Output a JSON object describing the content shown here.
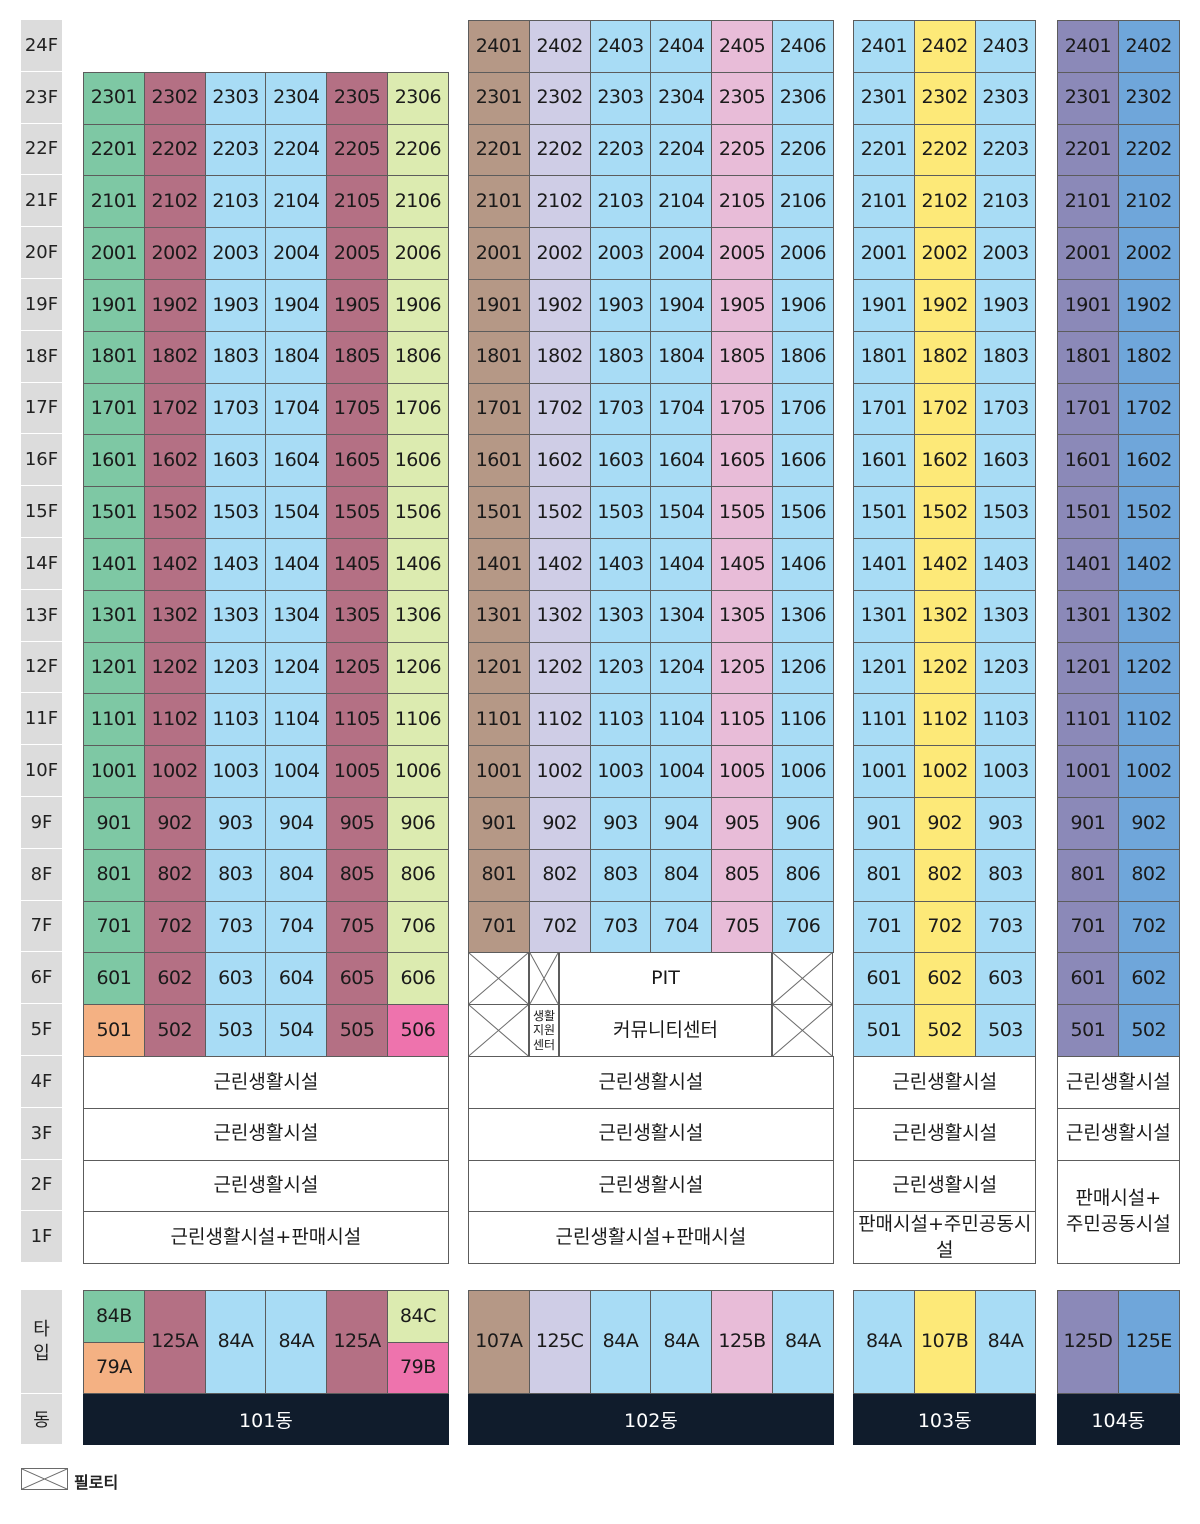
{
  "colors": {
    "79A": "#f4b183",
    "84A": "#a8dcf5",
    "84B": "#7ec8a4",
    "84C": "#dcebb0",
    "79B": "#ee73ad",
    "125A": "#b47084",
    "125B": "#e8bcd8",
    "125C": "#cfcde6",
    "125D": "#8b89b8",
    "125E": "#6fa6da",
    "107A": "#b59886",
    "107B": "#fde978"
  },
  "floor_labels": [
    "24F",
    "23F",
    "22F",
    "21F",
    "20F",
    "19F",
    "18F",
    "17F",
    "16F",
    "15F",
    "14F",
    "13F",
    "12F",
    "11F",
    "10F",
    "9F",
    "8F",
    "7F",
    "6F",
    "5F",
    "4F",
    "3F",
    "2F",
    "1F"
  ],
  "type_label": [
    "타",
    "입"
  ],
  "dong_label": "동",
  "buildings": [
    {
      "name": "101동",
      "top_floor": 23,
      "lowest_unit_floor": 5,
      "columns": [
        {
          "type": "84B",
          "floor_types": {
            "5": "79A"
          }
        },
        {
          "type": "125A"
        },
        {
          "type": "84A"
        },
        {
          "type": "84A"
        },
        {
          "type": "125A"
        },
        {
          "type": "84C",
          "floor_types": {
            "5": "79B"
          }
        }
      ],
      "type_row": [
        {
          "stack": [
            "84B",
            "79A"
          ]
        },
        {
          "label": "125A"
        },
        {
          "label": "84A"
        },
        {
          "label": "84A"
        },
        {
          "label": "125A"
        },
        {
          "stack": [
            "84C",
            "79B"
          ]
        }
      ],
      "podium": [
        {
          "floor": 4,
          "text": "근린생활시설"
        },
        {
          "floor": 3,
          "text": "근린생활시설"
        },
        {
          "floor": 2,
          "text": "근린생활시설"
        },
        {
          "floor": 1,
          "text": "근린생활시설+판매시설"
        }
      ]
    },
    {
      "name": "102동",
      "top_floor": 24,
      "lowest_unit_floor": 7,
      "columns": [
        {
          "type": "107A"
        },
        {
          "type": "125C"
        },
        {
          "type": "84A"
        },
        {
          "type": "84A"
        },
        {
          "type": "125B"
        },
        {
          "type": "84A"
        }
      ],
      "type_row": [
        {
          "label": "107A"
        },
        {
          "label": "125C"
        },
        {
          "label": "84A"
        },
        {
          "label": "84A"
        },
        {
          "label": "125B"
        },
        {
          "label": "84A"
        }
      ],
      "special_6f": "PIT",
      "special_5f": "커뮤니티센터",
      "special_5f_small": [
        "생활",
        "지원",
        "센터"
      ],
      "podium": [
        {
          "floor": 4,
          "text": "근린생활시설"
        },
        {
          "floor": 3,
          "text": "근린생활시설"
        },
        {
          "floor": 2,
          "text": "근린생활시설"
        },
        {
          "floor": 1,
          "text": "근린생활시설+판매시설"
        }
      ]
    },
    {
      "name": "103동",
      "top_floor": 24,
      "lowest_unit_floor": 5,
      "columns": [
        {
          "type": "84A"
        },
        {
          "type": "107B"
        },
        {
          "type": "84A"
        }
      ],
      "type_row": [
        {
          "label": "84A"
        },
        {
          "label": "107B"
        },
        {
          "label": "84A"
        }
      ],
      "podium": [
        {
          "floor": 4,
          "text": "근린생활시설"
        },
        {
          "floor": 3,
          "text": "근린생활시설"
        },
        {
          "floor": 2,
          "text": "근린생활시설"
        },
        {
          "floor": 1,
          "text": "판매시설+주민공동시설"
        }
      ]
    },
    {
      "name": "104동",
      "top_floor": 24,
      "lowest_unit_floor": 5,
      "columns": [
        {
          "type": "125D"
        },
        {
          "type": "125E"
        }
      ],
      "type_row": [
        {
          "label": "125D"
        },
        {
          "label": "125E"
        }
      ],
      "podium": [
        {
          "floor": 4,
          "text": "근린생활시설"
        },
        {
          "floor": 3,
          "text": "근린생활시설"
        },
        {
          "floor": "1-2",
          "text": "판매시설+\n주민공동시설"
        }
      ]
    }
  ],
  "legend": {
    "text": "필로티"
  }
}
